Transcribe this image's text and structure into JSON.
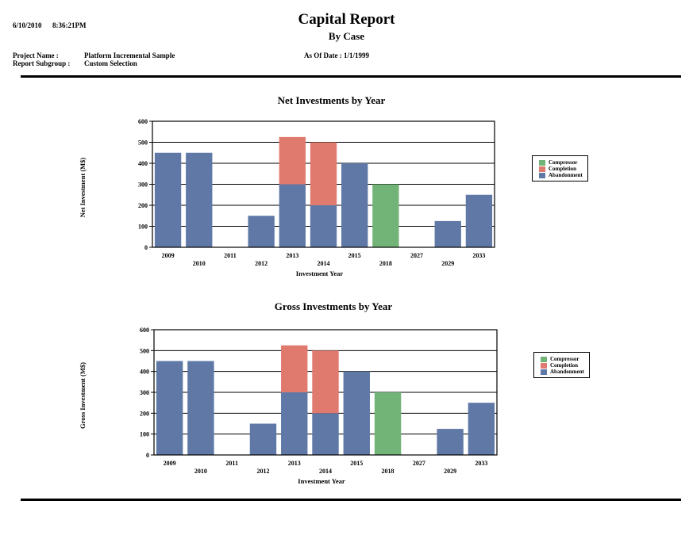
{
  "header": {
    "date": "6/10/2010",
    "time": "8:36:21PM",
    "title": "Capital Report",
    "subtitle": "By Case",
    "project_label": "Project Name :",
    "project_value": "Platform Incremental Sample",
    "subgroup_label": "Report Subgroup :",
    "subgroup_value": "Custom Selection",
    "as_of": "As Of Date : 1/1/1999"
  },
  "colors": {
    "Compressor": "#72b378",
    "Completion": "#e07a6e",
    "Abandonment": "#5f78a6"
  },
  "chart_data": [
    {
      "type": "bar",
      "stacked": true,
      "title": "Net Investments by Year",
      "xlabel": "Investment Year",
      "ylabel": "Net Investment (M$)",
      "ylim": [
        0,
        600
      ],
      "yticks": [
        0,
        100,
        200,
        300,
        400,
        500,
        600
      ],
      "grid": true,
      "legend_position": "right",
      "categories": [
        "2009",
        "2010",
        "2011",
        "2012",
        "2013",
        "2014",
        "2015",
        "2018",
        "2027",
        "2029",
        "2033"
      ],
      "series": [
        {
          "name": "Abandonment",
          "values": [
            450,
            450,
            0,
            150,
            300,
            200,
            400,
            0,
            0,
            125,
            250
          ]
        },
        {
          "name": "Completion",
          "values": [
            0,
            0,
            0,
            0,
            225,
            300,
            0,
            0,
            0,
            0,
            0
          ]
        },
        {
          "name": "Compressor",
          "values": [
            0,
            0,
            0,
            0,
            0,
            0,
            0,
            300,
            0,
            0,
            0
          ]
        }
      ],
      "legend": [
        "Compressor",
        "Completion",
        "Abandonment"
      ]
    },
    {
      "type": "bar",
      "stacked": true,
      "title": "Gross Investments by Year",
      "xlabel": "Investment Year",
      "ylabel": "Gross Investment (M$)",
      "ylim": [
        0,
        600
      ],
      "yticks": [
        0,
        100,
        200,
        300,
        400,
        500,
        600
      ],
      "grid": true,
      "legend_position": "right",
      "categories": [
        "2009",
        "2010",
        "2011",
        "2012",
        "2013",
        "2014",
        "2015",
        "2018",
        "2027",
        "2029",
        "2033"
      ],
      "series": [
        {
          "name": "Abandonment",
          "values": [
            450,
            450,
            0,
            150,
            300,
            200,
            400,
            0,
            0,
            125,
            250
          ]
        },
        {
          "name": "Completion",
          "values": [
            0,
            0,
            0,
            0,
            225,
            300,
            0,
            0,
            0,
            0,
            0
          ]
        },
        {
          "name": "Compressor",
          "values": [
            0,
            0,
            0,
            0,
            0,
            0,
            0,
            300,
            0,
            0,
            0
          ]
        }
      ],
      "legend": [
        "Compressor",
        "Completion",
        "Abandonment"
      ]
    }
  ]
}
